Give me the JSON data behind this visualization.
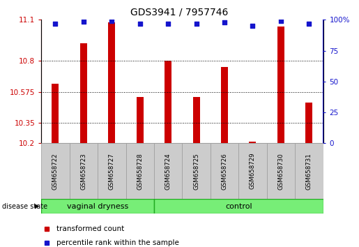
{
  "title": "GDS3941 / 7957746",
  "samples": [
    "GSM658722",
    "GSM658723",
    "GSM658727",
    "GSM658728",
    "GSM658724",
    "GSM658725",
    "GSM658726",
    "GSM658729",
    "GSM658730",
    "GSM658731"
  ],
  "red_values": [
    10.635,
    10.93,
    11.08,
    10.535,
    10.8,
    10.535,
    10.755,
    10.21,
    11.05,
    10.495
  ],
  "blue_values": [
    97,
    98.5,
    99,
    97,
    97,
    97,
    98,
    95,
    99,
    97
  ],
  "vaginal_count": 4,
  "y_min": 10.2,
  "y_max": 11.1,
  "y_ticks_red": [
    10.2,
    10.35,
    10.575,
    10.8,
    11.1
  ],
  "y_ticks_blue": [
    0,
    25,
    50,
    75,
    100
  ],
  "bar_color": "#CC0000",
  "dot_color": "#1414CC",
  "bar_width": 0.25,
  "legend_red": "transformed count",
  "legend_blue": "percentile rank within the sample",
  "group_fill": "#77EE77",
  "group_edge": "#22AA22",
  "sample_fill": "#CCCCCC",
  "sample_edge": "#999999"
}
